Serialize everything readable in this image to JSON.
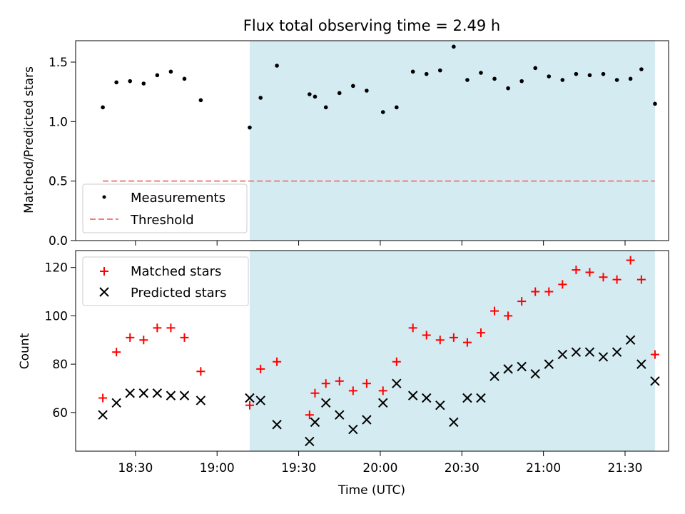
{
  "chart_data": [
    {
      "type": "scatter",
      "title": "Flux total observing time = 2.49 h",
      "ylabel": "Matched/Predicted stars",
      "xlim": [
        "18:08",
        "21:46"
      ],
      "ylim": [
        0,
        1.68
      ],
      "yticks": [
        "0.0",
        "0.5",
        "1.0",
        "1.5"
      ],
      "shaded_span": [
        "19:12",
        "21:41"
      ],
      "shade_color": "#d4ebf1",
      "threshold": {
        "name": "Threshold",
        "y": 0.5,
        "x_range": [
          "18:18",
          "21:41"
        ],
        "color": "#f08080"
      },
      "series": [
        {
          "name": "Measurements",
          "color": "#000000",
          "x": [
            "18:18",
            "18:23",
            "18:28",
            "18:33",
            "18:38",
            "18:43",
            "18:48",
            "18:54",
            "19:12",
            "19:16",
            "19:22",
            "19:34",
            "19:36",
            "19:40",
            "19:45",
            "19:50",
            "19:55",
            "20:01",
            "20:06",
            "20:12",
            "20:17",
            "20:22",
            "20:27",
            "20:32",
            "20:37",
            "20:42",
            "20:47",
            "20:52",
            "20:57",
            "21:02",
            "21:07",
            "21:12",
            "21:17",
            "21:22",
            "21:27",
            "21:32",
            "21:36",
            "21:41"
          ],
          "y": [
            1.12,
            1.33,
            1.34,
            1.32,
            1.39,
            1.42,
            1.36,
            1.18,
            0.95,
            1.2,
            1.47,
            1.23,
            1.21,
            1.12,
            1.24,
            1.3,
            1.26,
            1.08,
            1.12,
            1.42,
            1.4,
            1.43,
            1.63,
            1.35,
            1.41,
            1.36,
            1.28,
            1.34,
            1.45,
            1.38,
            1.35,
            1.4,
            1.39,
            1.4,
            1.35,
            1.36,
            1.44,
            1.15
          ]
        }
      ],
      "legend": [
        "Measurements",
        "Threshold"
      ],
      "legend_position": "lower-left"
    },
    {
      "type": "scatter",
      "xlabel": "Time (UTC)",
      "ylabel": "Count",
      "xlim": [
        "18:08",
        "21:46"
      ],
      "ylim": [
        44,
        127
      ],
      "yticks": [
        "60",
        "80",
        "100",
        "120"
      ],
      "xticks": [
        "18:30",
        "19:00",
        "19:30",
        "20:00",
        "20:30",
        "21:00",
        "21:30"
      ],
      "shaded_span": [
        "19:12",
        "21:41"
      ],
      "series": [
        {
          "name": "Matched stars",
          "color": "#ff0000",
          "marker": "plus",
          "x": [
            "18:18",
            "18:23",
            "18:28",
            "18:33",
            "18:38",
            "18:43",
            "18:48",
            "18:54",
            "19:12",
            "19:16",
            "19:22",
            "19:34",
            "19:36",
            "19:40",
            "19:45",
            "19:50",
            "19:55",
            "20:01",
            "20:06",
            "20:12",
            "20:17",
            "20:22",
            "20:27",
            "20:32",
            "20:37",
            "20:42",
            "20:47",
            "20:52",
            "20:57",
            "21:02",
            "21:07",
            "21:12",
            "21:17",
            "21:22",
            "21:27",
            "21:32",
            "21:36",
            "21:41"
          ],
          "y": [
            66,
            85,
            91,
            90,
            95,
            95,
            91,
            77,
            63,
            78,
            81,
            59,
            68,
            72,
            73,
            69,
            72,
            69,
            81,
            95,
            92,
            90,
            91,
            89,
            93,
            102,
            100,
            106,
            110,
            110,
            113,
            119,
            118,
            116,
            115,
            123,
            115,
            84
          ]
        },
        {
          "name": "Predicted stars",
          "color": "#000000",
          "marker": "x",
          "x": [
            "18:18",
            "18:23",
            "18:28",
            "18:33",
            "18:38",
            "18:43",
            "18:48",
            "18:54",
            "19:12",
            "19:16",
            "19:22",
            "19:34",
            "19:36",
            "19:40",
            "19:45",
            "19:50",
            "19:55",
            "20:01",
            "20:06",
            "20:12",
            "20:17",
            "20:22",
            "20:27",
            "20:32",
            "20:37",
            "20:42",
            "20:47",
            "20:52",
            "20:57",
            "21:02",
            "21:07",
            "21:12",
            "21:17",
            "21:22",
            "21:27",
            "21:32",
            "21:36",
            "21:41"
          ],
          "y": [
            59,
            64,
            68,
            68,
            68,
            67,
            67,
            65,
            66,
            65,
            55,
            48,
            56,
            64,
            59,
            53,
            57,
            64,
            72,
            67,
            66,
            63,
            56,
            66,
            66,
            75,
            78,
            79,
            76,
            80,
            84,
            85,
            85,
            83,
            85,
            90,
            80,
            73
          ]
        }
      ],
      "legend": [
        "Matched stars",
        "Predicted stars"
      ],
      "legend_position": "upper-left"
    }
  ]
}
